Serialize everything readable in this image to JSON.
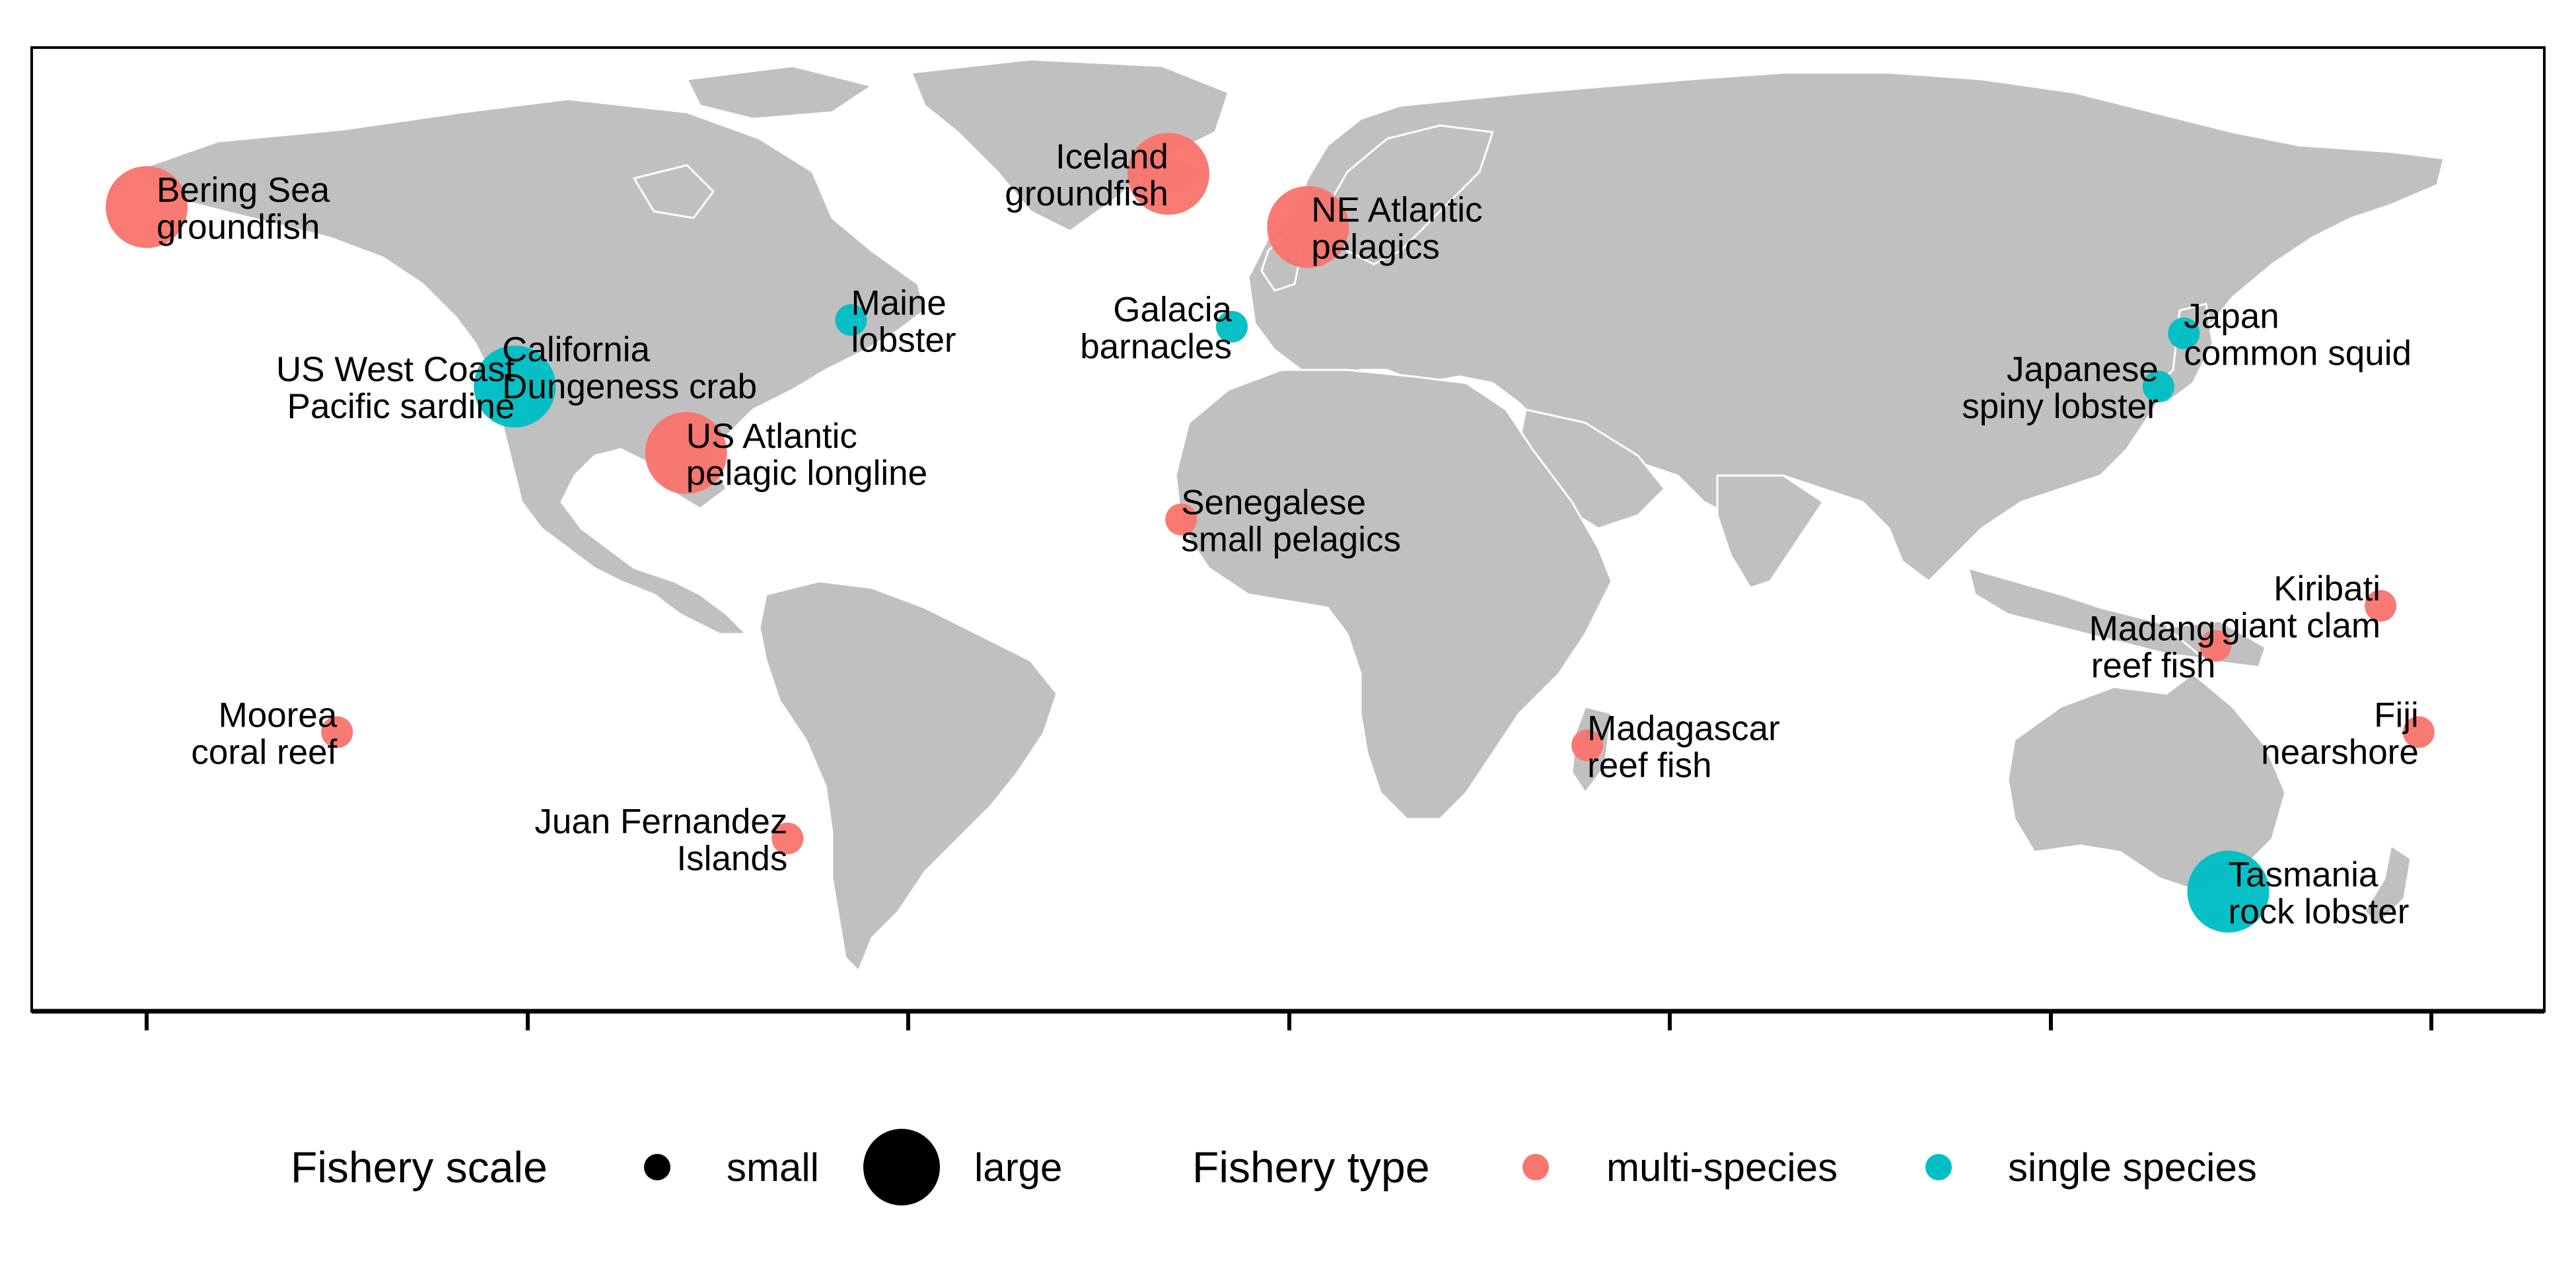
{
  "colors": {
    "multi_species": "#F8766D",
    "single_species": "#00BFC4",
    "land": "#C0C0C0",
    "land_border": "#FFFFFF",
    "frame": "#000000"
  },
  "map": {
    "projection": "equirectangular",
    "lon_range": [
      -180,
      180
    ],
    "lat_range": [
      -60,
      85
    ]
  },
  "legend": {
    "scale_title": "Fishery scale",
    "scale_small": "small",
    "scale_large": "large",
    "type_title": "Fishery type",
    "type_multi": "multi-species",
    "type_single": "single species"
  },
  "fisheries": [
    {
      "name": [
        "Bering Sea",
        "groundfish"
      ],
      "lon": -180,
      "lat": 61,
      "type": "multi-species",
      "scale": "large"
    },
    {
      "name": [
        "Iceland",
        "groundfish"
      ],
      "lon": -19,
      "lat": 66,
      "type": "multi-species",
      "scale": "large"
    },
    {
      "name": [
        "NE Atlantic",
        "pelagics"
      ],
      "lon": 3,
      "lat": 58,
      "type": "multi-species",
      "scale": "large"
    },
    {
      "name": [
        "Maine",
        "lobster"
      ],
      "lon": -69,
      "lat": 44,
      "type": "single species",
      "scale": "small"
    },
    {
      "name": [
        "Galacia",
        "barnacles"
      ],
      "lon": -9,
      "lat": 43,
      "type": "single species",
      "scale": "small"
    },
    {
      "name": [
        "Japan",
        "common squid"
      ],
      "lon": 141,
      "lat": 42,
      "type": "single species",
      "scale": "small"
    },
    {
      "name": [
        "Japanese",
        "spiny lobster"
      ],
      "lon": 137,
      "lat": 34,
      "type": "single species",
      "scale": "small"
    },
    {
      "name": [
        "California",
        "Dungeness crab"
      ],
      "lon": -124,
      "lat": 37,
      "type": "single species",
      "scale": "small"
    },
    {
      "name": [
        "US West Coast",
        "Pacific sardine"
      ],
      "lon": -122,
      "lat": 34,
      "type": "single species",
      "scale": "large"
    },
    {
      "name": [
        "US Atlantic",
        "pelagic longline"
      ],
      "lon": -95,
      "lat": 24,
      "type": "multi-species",
      "scale": "large"
    },
    {
      "name": [
        "Senegalese",
        "small pelagics"
      ],
      "lon": -17,
      "lat": 14,
      "type": "multi-species",
      "scale": "small"
    },
    {
      "name": [
        "Kiribati",
        "giant clam"
      ],
      "lon": 172,
      "lat": 1,
      "type": "multi-species",
      "scale": "small"
    },
    {
      "name": [
        "Madang",
        "reef fish"
      ],
      "lon": 146,
      "lat": -5,
      "type": "multi-species",
      "scale": "small"
    },
    {
      "name": [
        "Moorea",
        "coral reef"
      ],
      "lon": -150,
      "lat": -18,
      "type": "multi-species",
      "scale": "small"
    },
    {
      "name": [
        "Fiji",
        "nearshore"
      ],
      "lon": 178,
      "lat": -18,
      "type": "multi-species",
      "scale": "small"
    },
    {
      "name": [
        "Madagascar",
        "reef fish"
      ],
      "lon": 47,
      "lat": -20,
      "type": "multi-species",
      "scale": "small"
    },
    {
      "name": [
        "Juan Fernandez",
        "Islands"
      ],
      "lon": -79,
      "lat": -34,
      "type": "multi-species",
      "scale": "small"
    },
    {
      "name": [
        "Tasmania",
        "rock lobster"
      ],
      "lon": 148,
      "lat": -42,
      "type": "single species",
      "scale": "large"
    }
  ]
}
